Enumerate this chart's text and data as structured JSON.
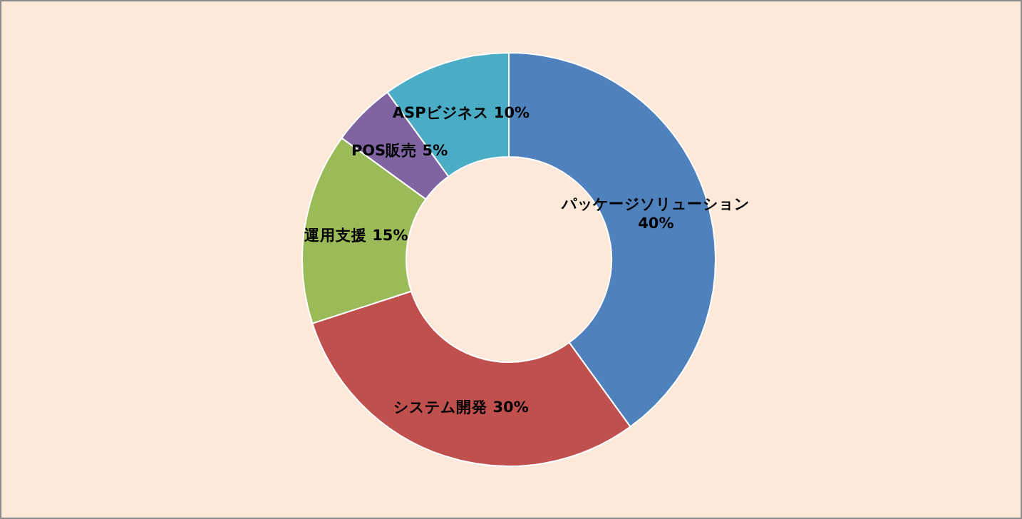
{
  "chart_data": {
    "type": "donut",
    "categories": [
      "パッケージソリューション",
      "システム開発",
      "運用支援",
      "POS販売",
      "ASPビジネス"
    ],
    "values": [
      40,
      30,
      15,
      5,
      10
    ],
    "value_labels": [
      "40%",
      "30%",
      "15%",
      "5%",
      "10%"
    ],
    "colors": [
      "#4f81bd",
      "#c0504d",
      "#9bbb59",
      "#8064a2",
      "#4bacc6"
    ]
  }
}
